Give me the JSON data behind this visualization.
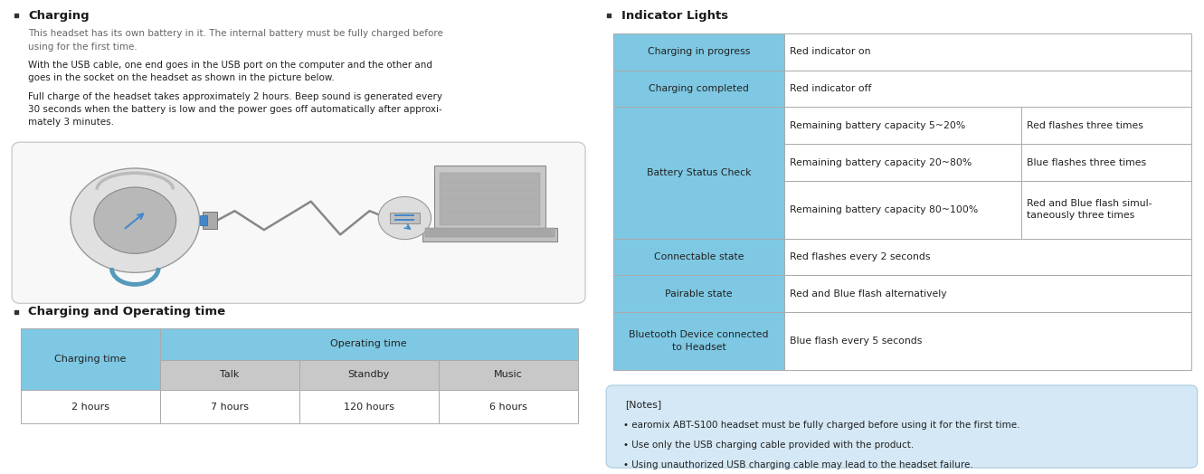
{
  "bg_color": "#ffffff",
  "left": {
    "charging_title": "Charging",
    "body1": "This headset has its own battery in it. The internal battery must be fully charged before\nusing for the first time.",
    "body2": "With the USB cable, one end goes in the USB port on the computer and the other and\ngoes in the socket on the headset as shown in the picture below.",
    "body3": "Full charge of the headset takes approximately 2 hours. Beep sound is generated every\n30 seconds when the battery is low and the power goes off automatically after approxi-\nmately 3 minutes.",
    "op_title": "Charging and Operating time",
    "table_blue": "#7ec8e3",
    "table_gray": "#c8c8c8",
    "table_white": "#ffffff",
    "table_border": "#aaaaaa"
  },
  "right": {
    "ind_title": "Indicator Lights",
    "table_blue": "#7ec8e3",
    "table_white": "#ffffff",
    "table_border": "#aaaaaa",
    "notes_bg": "#d4e8f5",
    "notes_border": "#aaccdd"
  }
}
